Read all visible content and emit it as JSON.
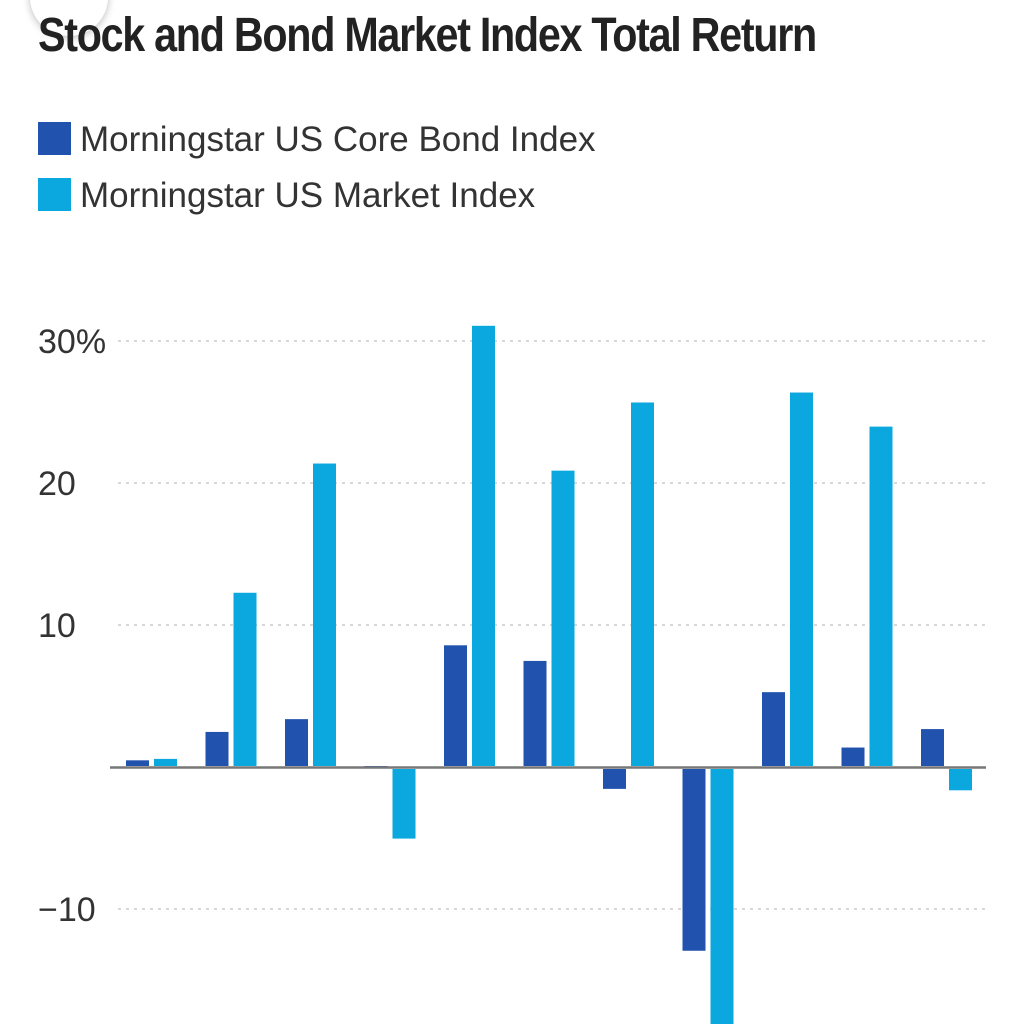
{
  "chart_data": {
    "type": "bar",
    "title": "Stock and Bond Market Index Total Return",
    "series": [
      {
        "name": "Morningstar US Core Bond Index",
        "color": "#2052AE",
        "values": [
          0.4,
          2.4,
          3.3,
          0.0,
          8.5,
          7.4,
          -1.4,
          -12.8,
          5.2,
          1.3,
          2.6
        ]
      },
      {
        "name": "Morningstar US Market Index",
        "color": "#0AA8DE",
        "values": [
          0.5,
          12.2,
          21.3,
          -4.9,
          31.0,
          20.8,
          25.6,
          -19.4,
          26.3,
          23.9,
          -1.5
        ]
      }
    ],
    "y_ticks": [
      {
        "value": 30,
        "label": "30%"
      },
      {
        "value": 20,
        "label": "20"
      },
      {
        "value": 10,
        "label": "10"
      },
      {
        "value": -10,
        "label": "−10"
      }
    ],
    "ylim": [
      -18,
      34
    ],
    "grid": true,
    "legend_position": "top-left"
  },
  "ui": {
    "menu_icon": "list-icon"
  }
}
